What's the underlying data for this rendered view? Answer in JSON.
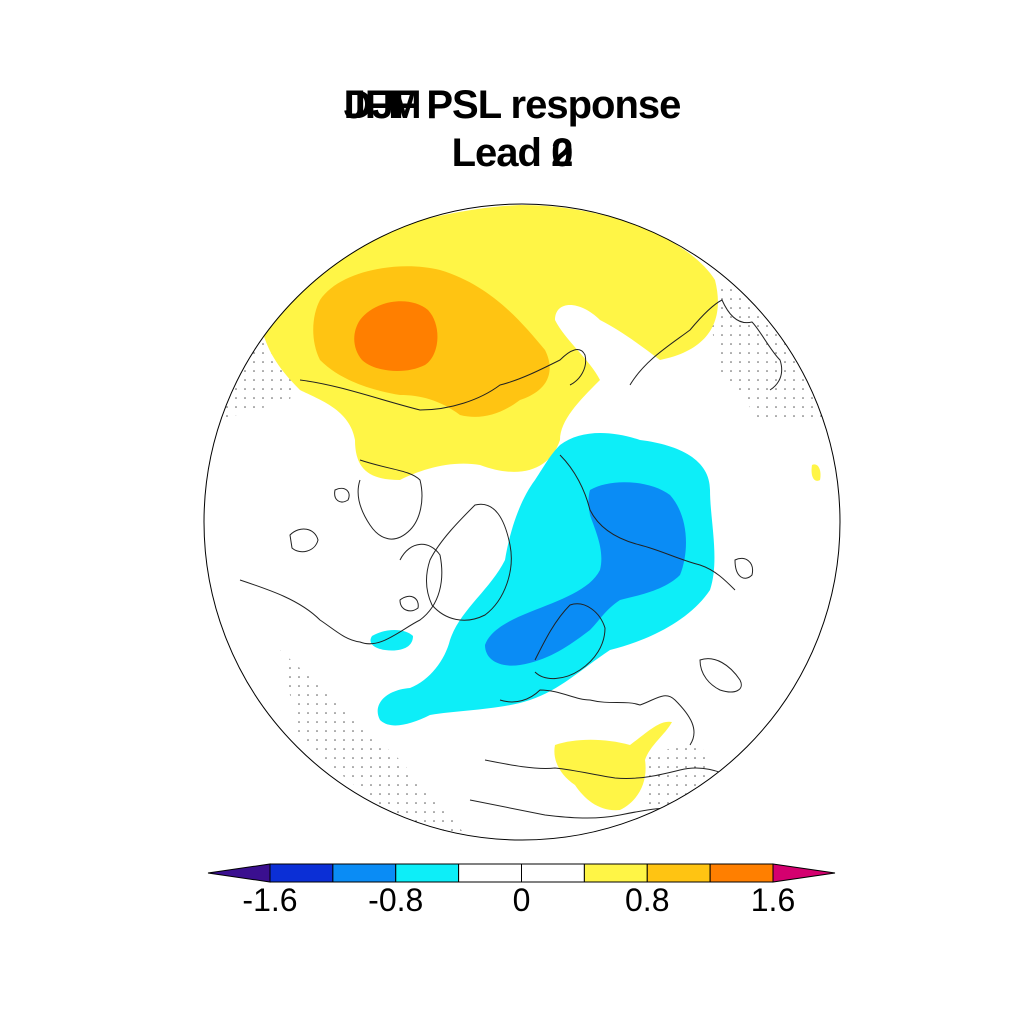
{
  "title": {
    "line1_variants": [
      "DJF",
      "JFM"
    ],
    "line1_rest": "PSL response",
    "line2_prefix": "Lead",
    "line2_variants": [
      "0",
      "2"
    ]
  },
  "map": {
    "projection": "north-polar-stereographic",
    "field": "PSL response",
    "stippling": "dotted-regions",
    "features": [
      {
        "name": "positive-anomaly-north-pacific-core",
        "level": 1.6
      },
      {
        "name": "positive-anomaly-north-pacific",
        "level": 1.2
      },
      {
        "name": "positive-anomaly-north-pacific-outer",
        "level": 0.8
      },
      {
        "name": "negative-anomaly-north-atlantic-core",
        "level": -1.2
      },
      {
        "name": "negative-anomaly-north-atlantic",
        "level": -0.8
      },
      {
        "name": "positive-anomaly-mediterranean",
        "level": 0.8
      }
    ]
  },
  "colorbar": {
    "levels": [
      -1.6,
      -1.2,
      -0.8,
      -0.4,
      0,
      0.4,
      0.8,
      1.2,
      1.6
    ],
    "colors": [
      "#3a0f8f",
      "#0b2fd6",
      "#0a8cf5",
      "#0deef8",
      "#ffffff",
      "#ffffff",
      "#fff546",
      "#ffc412",
      "#ff7f00",
      "#d4006f"
    ],
    "tick_labels": [
      "-1.6",
      "-0.8",
      "0",
      "0.8",
      "1.6"
    ],
    "tick_values": [
      -1.6,
      -0.8,
      0,
      0.8,
      1.6
    ],
    "extend": "both"
  }
}
